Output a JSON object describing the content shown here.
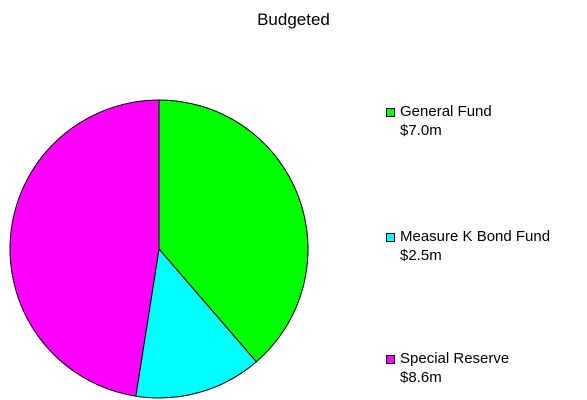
{
  "chart_data": {
    "type": "pie",
    "title": "Budgeted",
    "slices": [
      {
        "label": "General Fund",
        "value": 7.0,
        "value_label": "$7.0m",
        "color": "#00ff00"
      },
      {
        "label": "Measure K Bond Fund",
        "value": 2.5,
        "value_label": "$2.5m",
        "color": "#00ffff"
      },
      {
        "label": "Special Reserve",
        "value": 8.6,
        "value_label": "$8.6m",
        "color": "#ff00ff"
      }
    ],
    "legend_position": "right"
  }
}
